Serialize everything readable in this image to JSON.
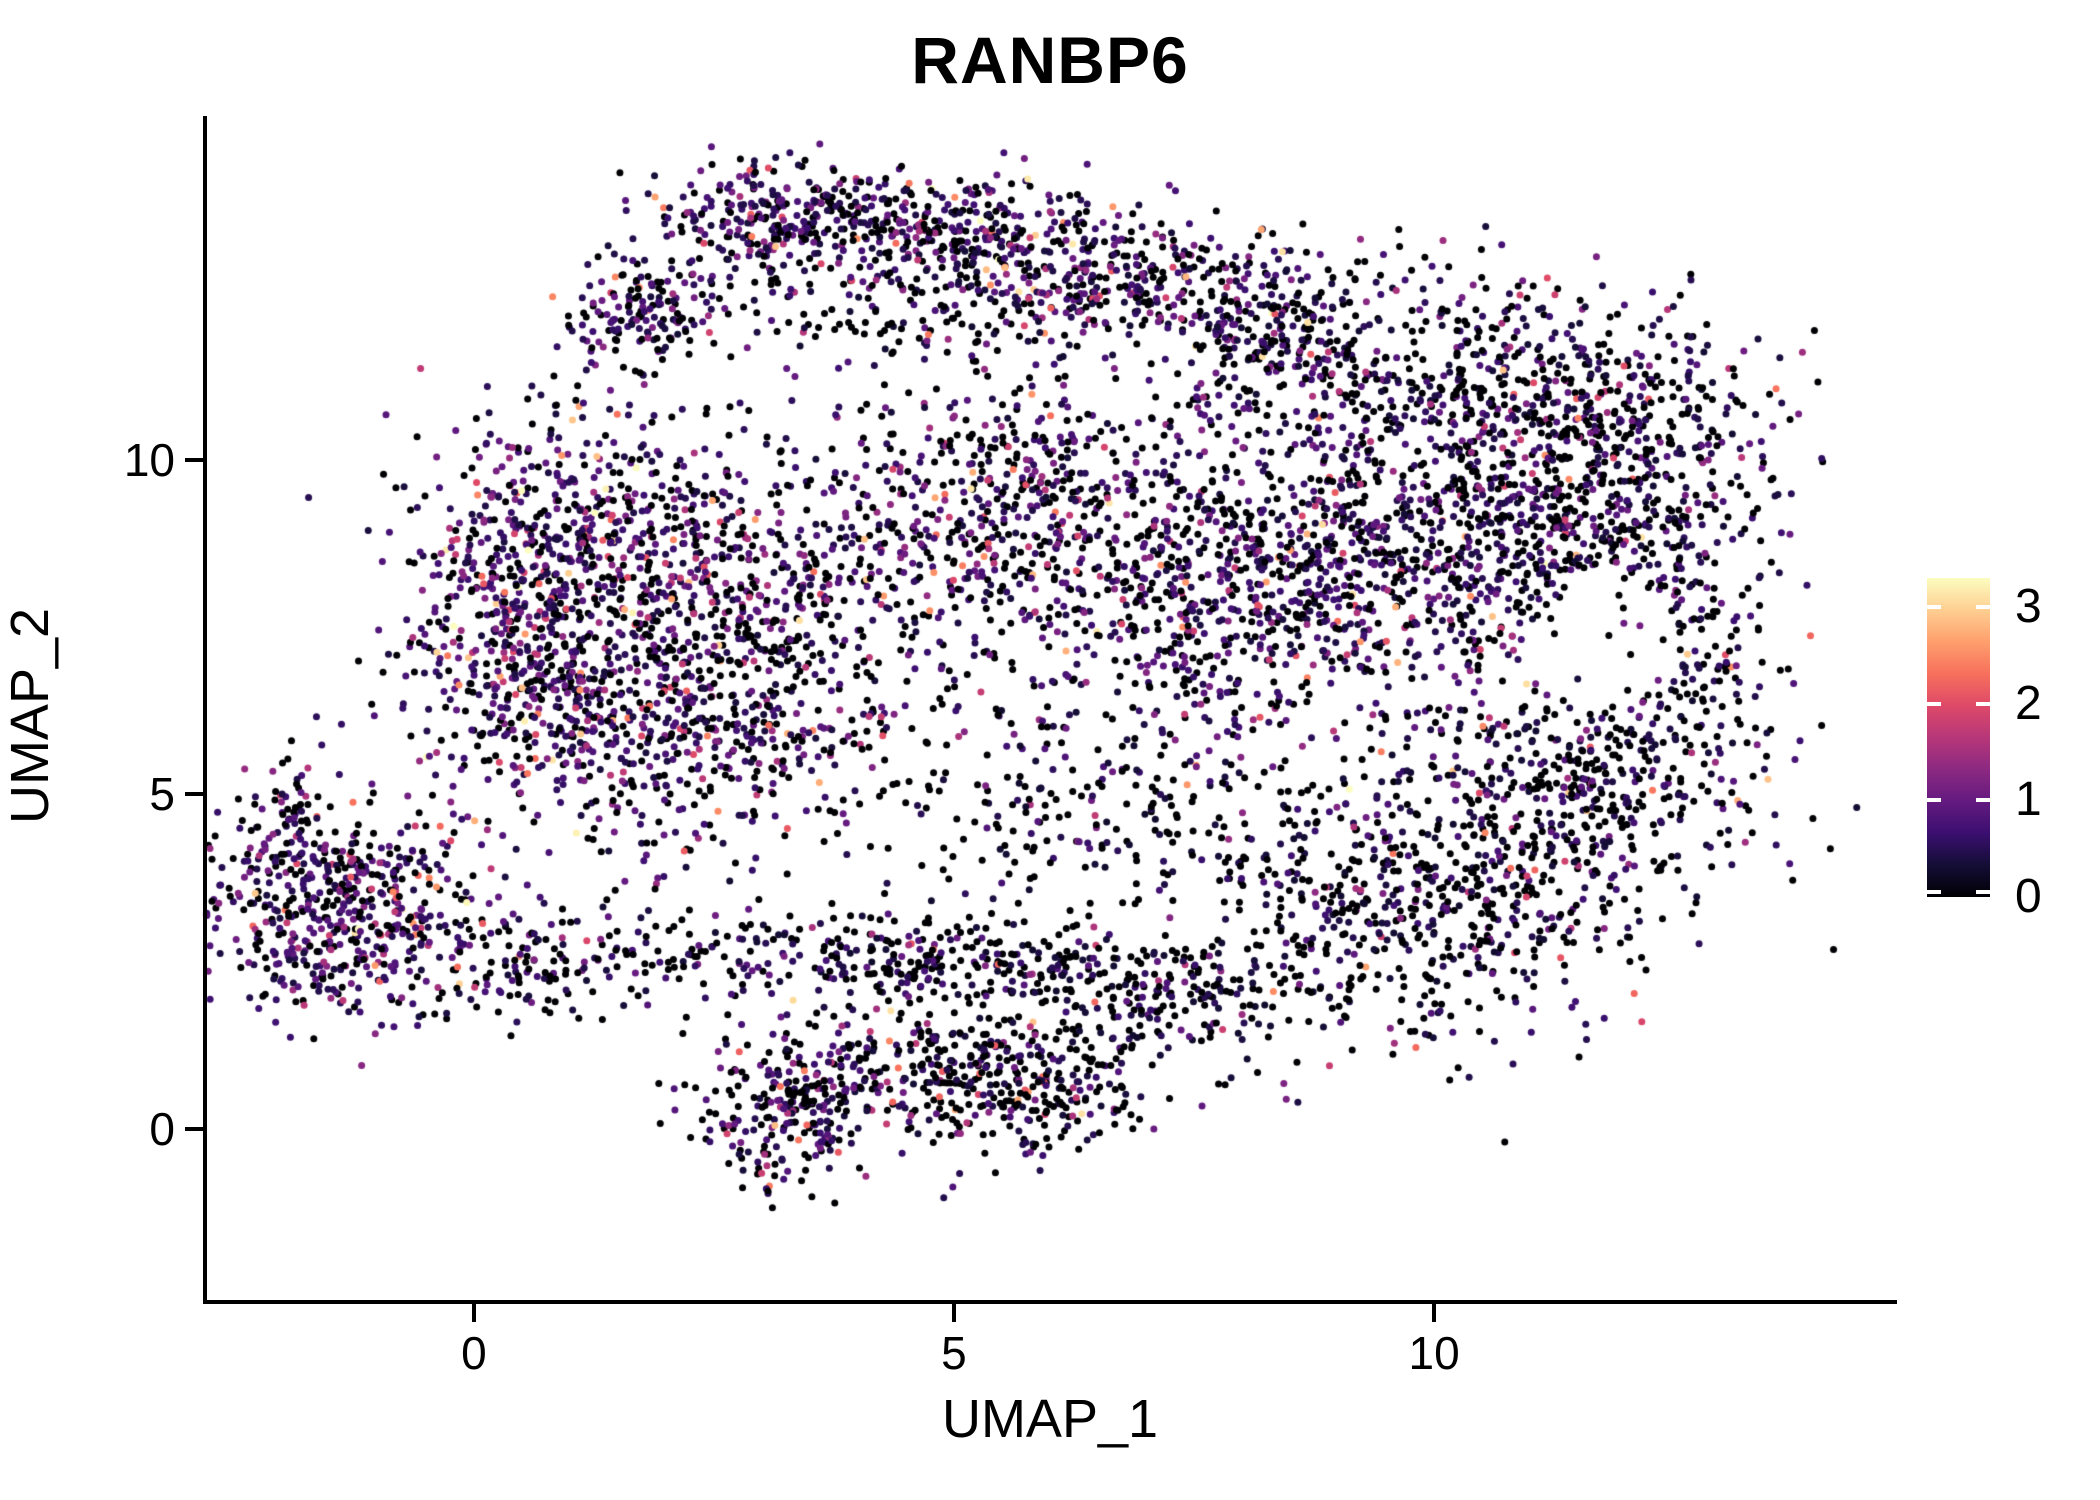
{
  "figure": {
    "title": "RANBP6"
  },
  "axes": {
    "x": {
      "title": "UMAP_1",
      "ticks": [
        {
          "value": 0,
          "label": "0"
        },
        {
          "value": 5,
          "label": "5"
        },
        {
          "value": 10,
          "label": "10"
        }
      ]
    },
    "y": {
      "title": "UMAP_2",
      "ticks": [
        {
          "value": 0,
          "label": "0"
        },
        {
          "value": 5,
          "label": "5"
        },
        {
          "value": 10,
          "label": "10"
        }
      ]
    }
  },
  "legend": {
    "ticks": [
      {
        "value": 3,
        "label": "3"
      },
      {
        "value": 2,
        "label": "2"
      },
      {
        "value": 1,
        "label": "1"
      },
      {
        "value": 0,
        "label": "0"
      }
    ]
  },
  "chart_data": {
    "type": "scatter",
    "title": "RANBP6",
    "xlabel": "UMAP_1",
    "ylabel": "UMAP_2",
    "xlim": [
      -2.8,
      14.8
    ],
    "ylim": [
      -2.55,
      15.1
    ],
    "grid": false,
    "legend_position": "right",
    "point_radius_px": 3.5,
    "seed": 20240,
    "color_scale": {
      "name": "magma",
      "domain": [
        0,
        3.3
      ],
      "stops": [
        {
          "t": 0.0,
          "color": "#000004"
        },
        {
          "t": 0.1,
          "color": "#140e36"
        },
        {
          "t": 0.2,
          "color": "#3b0f70"
        },
        {
          "t": 0.3,
          "color": "#641a80"
        },
        {
          "t": 0.4,
          "color": "#8c2981"
        },
        {
          "t": 0.5,
          "color": "#b73779"
        },
        {
          "t": 0.6,
          "color": "#de4968"
        },
        {
          "t": 0.7,
          "color": "#f7705c"
        },
        {
          "t": 0.8,
          "color": "#fe9f6d"
        },
        {
          "t": 0.9,
          "color": "#fecf92"
        },
        {
          "t": 1.0,
          "color": "#fcfdbf"
        }
      ]
    },
    "clusters": [
      {
        "id": "rim-left",
        "cx": 1.75,
        "cy": 12.15,
        "sx": 0.45,
        "sy": 0.45,
        "n": 160,
        "p0": 0.38,
        "mu": 0.95
      },
      {
        "id": "rim-mid",
        "cx": 3.3,
        "cy": 13.6,
        "sx": 0.75,
        "sy": 0.45,
        "n": 300,
        "p0": 0.36,
        "mu": 1.0
      },
      {
        "id": "rim-mid2",
        "cx": 5.0,
        "cy": 13.45,
        "sx": 0.85,
        "sy": 0.42,
        "n": 280,
        "p0": 0.38,
        "mu": 0.95
      },
      {
        "id": "rim-right",
        "cx": 6.6,
        "cy": 12.7,
        "sx": 0.8,
        "sy": 0.5,
        "n": 230,
        "p0": 0.4,
        "mu": 0.9
      },
      {
        "id": "under-rim",
        "cx": 4.3,
        "cy": 12.3,
        "sx": 1.3,
        "sy": 0.7,
        "n": 170,
        "p0": 0.55,
        "mu": 0.8
      },
      {
        "id": "top-band-1",
        "cx": 8.3,
        "cy": 11.9,
        "sx": 1.1,
        "sy": 0.7,
        "n": 420,
        "p0": 0.45,
        "mu": 0.85
      },
      {
        "id": "top-band-2",
        "cx": 10.3,
        "cy": 11.2,
        "sx": 1.2,
        "sy": 0.75,
        "n": 430,
        "p0": 0.45,
        "mu": 0.85
      },
      {
        "id": "top-right",
        "cx": 12.1,
        "cy": 10.2,
        "sx": 0.85,
        "sy": 0.85,
        "n": 330,
        "p0": 0.48,
        "mu": 0.85
      },
      {
        "id": "left-lobe-top",
        "cx": 1.1,
        "cy": 8.9,
        "sx": 0.85,
        "sy": 0.95,
        "n": 520,
        "p0": 0.33,
        "mu": 1.05
      },
      {
        "id": "left-lobe-edge",
        "cx": 0.45,
        "cy": 6.9,
        "sx": 0.7,
        "sy": 0.95,
        "n": 430,
        "p0": 0.33,
        "mu": 1.1
      },
      {
        "id": "left-lobe-low",
        "cx": 2.1,
        "cy": 6.1,
        "sx": 0.95,
        "sy": 0.95,
        "n": 470,
        "p0": 0.38,
        "mu": 1.0
      },
      {
        "id": "left-lobe-mid",
        "cx": 3.1,
        "cy": 7.8,
        "sx": 1.0,
        "sy": 1.15,
        "n": 470,
        "p0": 0.38,
        "mu": 1.0
      },
      {
        "id": "chain-left",
        "cx": 3.6,
        "cy": 2.6,
        "sx": 1.5,
        "sy": 0.35,
        "n": 240,
        "p0": 0.55,
        "mu": 0.8
      },
      {
        "id": "chain-right",
        "cx": 6.3,
        "cy": 2.3,
        "sx": 1.3,
        "sy": 0.35,
        "n": 200,
        "p0": 0.6,
        "mu": 0.7
      },
      {
        "id": "center-1",
        "cx": 5.6,
        "cy": 9.4,
        "sx": 1.15,
        "sy": 1.0,
        "n": 500,
        "p0": 0.42,
        "mu": 0.95
      },
      {
        "id": "center-2",
        "cx": 7.5,
        "cy": 7.8,
        "sx": 1.25,
        "sy": 1.15,
        "n": 600,
        "p0": 0.4,
        "mu": 0.95
      },
      {
        "id": "center-3",
        "cx": 9.4,
        "cy": 8.7,
        "sx": 1.15,
        "sy": 1.0,
        "n": 580,
        "p0": 0.42,
        "mu": 0.9
      },
      {
        "id": "center-4",
        "cx": 11.2,
        "cy": 8.8,
        "sx": 0.95,
        "sy": 0.85,
        "n": 400,
        "p0": 0.45,
        "mu": 0.85
      },
      {
        "id": "right-bulge",
        "cx": 12.5,
        "cy": 7.2,
        "sx": 0.5,
        "sy": 1.0,
        "n": 200,
        "p0": 0.5,
        "mu": 0.75
      },
      {
        "id": "mid-sparse",
        "cx": 6.3,
        "cy": 4.6,
        "sx": 1.5,
        "sy": 1.0,
        "n": 260,
        "p0": 0.62,
        "mu": 0.7
      },
      {
        "id": "bottom-right",
        "cx": 9.8,
        "cy": 3.5,
        "sx": 1.25,
        "sy": 1.05,
        "n": 650,
        "p0": 0.55,
        "mu": 0.75
      },
      {
        "id": "br-upper",
        "cx": 11.6,
        "cy": 5.3,
        "sx": 1.0,
        "sy": 1.0,
        "n": 420,
        "p0": 0.52,
        "mu": 0.8
      },
      {
        "id": "left-cluster",
        "cx": -1.35,
        "cy": 3.2,
        "sx": 0.7,
        "sy": 0.8,
        "n": 560,
        "p0": 0.33,
        "mu": 1.05
      },
      {
        "id": "left-tail",
        "cx": -1.95,
        "cy": 4.65,
        "sx": 0.22,
        "sy": 0.4,
        "n": 60,
        "p0": 0.4,
        "mu": 1.0
      },
      {
        "id": "left-trail",
        "cx": 0.5,
        "cy": 2.55,
        "sx": 0.7,
        "sy": 0.5,
        "n": 120,
        "p0": 0.5,
        "mu": 0.9
      },
      {
        "id": "bottom-1",
        "cx": 3.25,
        "cy": 0.25,
        "sx": 0.45,
        "sy": 0.6,
        "n": 220,
        "p0": 0.42,
        "mu": 1.0
      },
      {
        "id": "bottom-2",
        "cx": 4.55,
        "cy": 0.9,
        "sx": 0.8,
        "sy": 0.5,
        "n": 260,
        "p0": 0.5,
        "mu": 0.9
      },
      {
        "id": "bottom-3",
        "cx": 5.8,
        "cy": 0.65,
        "sx": 0.6,
        "sy": 0.5,
        "n": 210,
        "p0": 0.52,
        "mu": 0.85
      },
      {
        "id": "bottom-trail",
        "cx": 7.0,
        "cy": 1.8,
        "sx": 0.9,
        "sy": 0.45,
        "n": 100,
        "p0": 0.6,
        "mu": 0.7
      }
    ],
    "holes": [
      {
        "x": 11.8,
        "y": 7.3,
        "rx": 0.75,
        "ry": 0.95,
        "reject": 0.85
      },
      {
        "x": 6.9,
        "y": 11.35,
        "rx": 0.75,
        "ry": 0.6,
        "reject": 0.8
      },
      {
        "x": 9.7,
        "y": 11.7,
        "rx": 0.5,
        "ry": 0.45,
        "reject": 0.7
      },
      {
        "x": 7.0,
        "y": 3.4,
        "rx": 0.8,
        "ry": 0.7,
        "reject": 0.6
      }
    ]
  }
}
